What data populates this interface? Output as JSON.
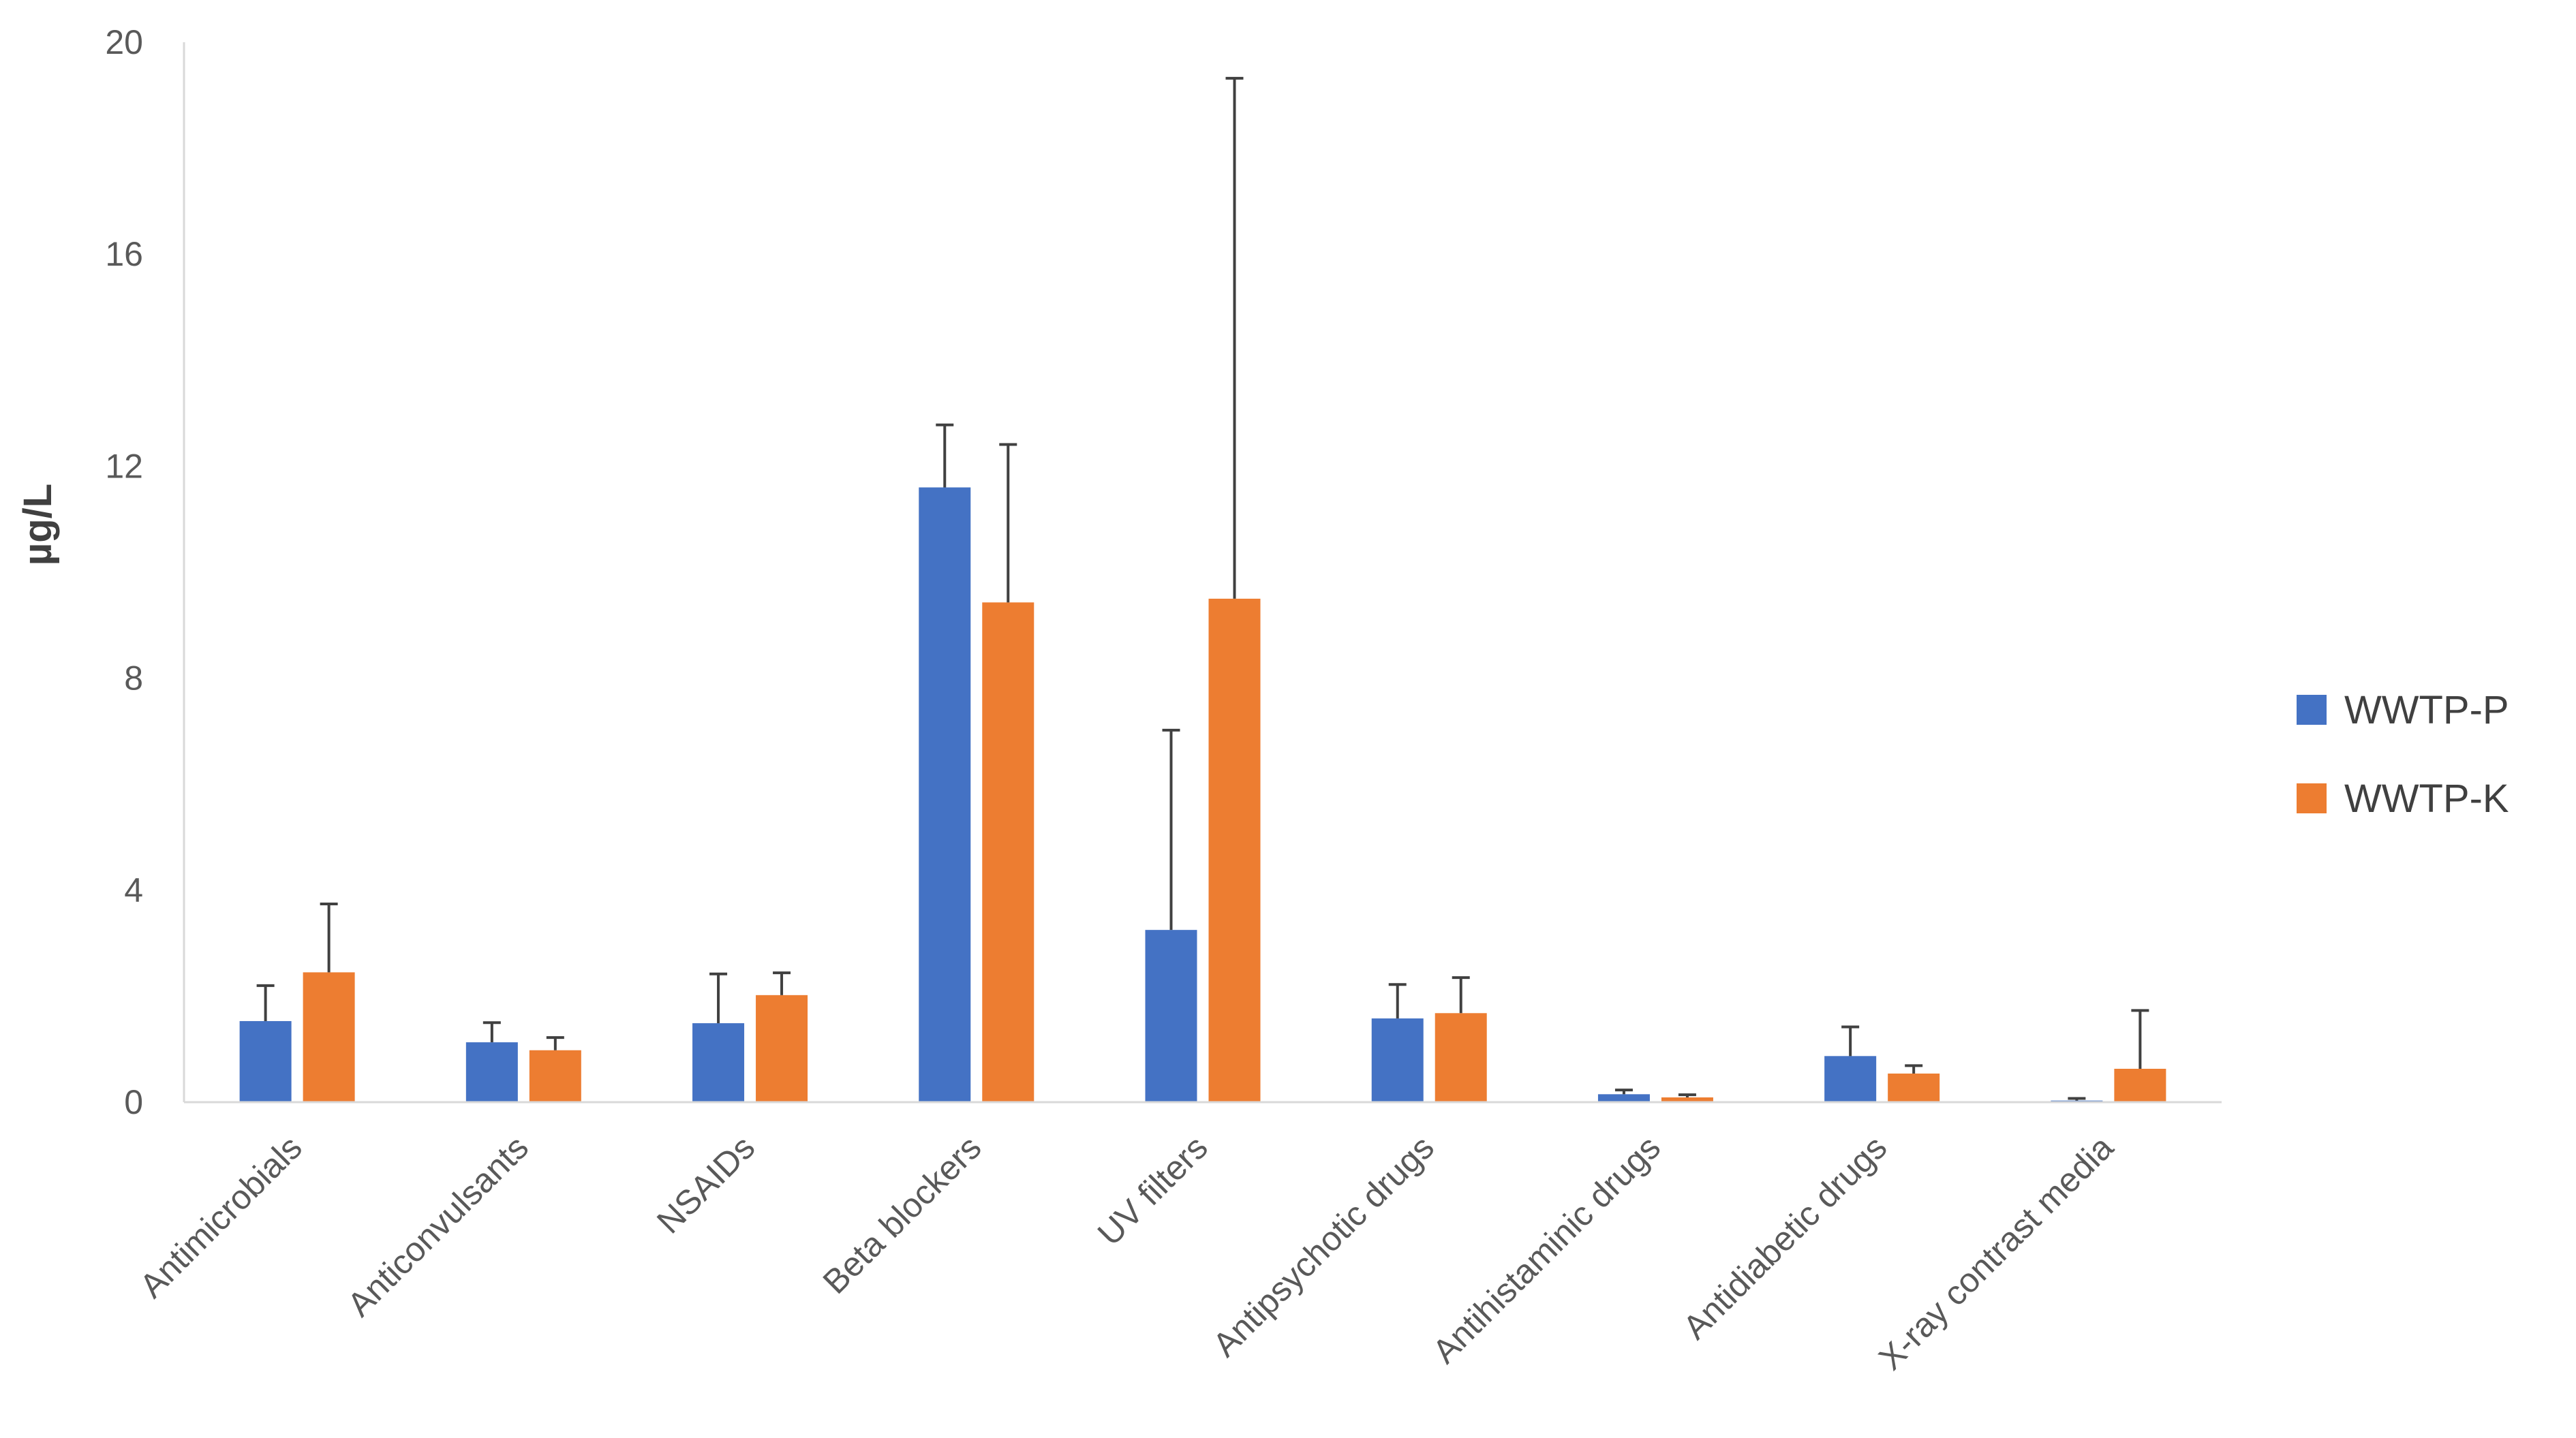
{
  "chart_data": {
    "type": "bar",
    "title": "",
    "xlabel": "",
    "ylabel": "µg/L",
    "ylim": [
      0,
      20
    ],
    "yticks": [
      0,
      4,
      8,
      12,
      16,
      20
    ],
    "grid": false,
    "legend_position": "right",
    "categories": [
      "Antimicrobials",
      "Anticonvulsants",
      "NSAIDs",
      "Beta blockers",
      "UV filters",
      "Antipsychotic drugs",
      "Antihistaminic drugs",
      "Antidiabetic drugs",
      "X-ray contrast media"
    ],
    "series": [
      {
        "name": "WWTP-P",
        "color": "#4472C4",
        "values": [
          1.53,
          1.13,
          1.49,
          11.6,
          3.25,
          1.58,
          0.15,
          0.87,
          0.03
        ],
        "error_upper": [
          0.67,
          0.37,
          0.93,
          1.18,
          3.77,
          0.64,
          0.08,
          0.55,
          0.04
        ]
      },
      {
        "name": "WWTP-K",
        "color": "#ED7D31",
        "values": [
          2.45,
          0.98,
          2.02,
          9.43,
          9.5,
          1.68,
          0.09,
          0.54,
          0.63
        ],
        "error_upper": [
          1.29,
          0.24,
          0.42,
          2.98,
          9.82,
          0.67,
          0.05,
          0.15,
          1.1
        ]
      }
    ]
  }
}
